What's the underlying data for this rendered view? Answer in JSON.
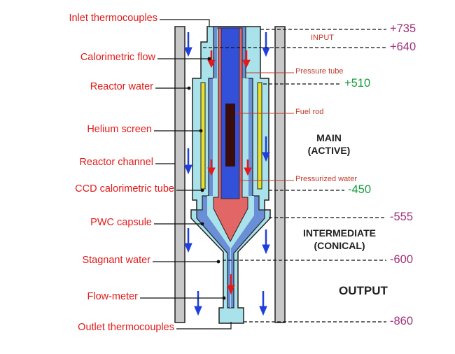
{
  "labels_left": {
    "inlet_thermocouples": "Inlet thermocouples",
    "calorimetric_flow": "Calorimetric flow",
    "reactor_water": "Reactor water",
    "helium_screen": "Helium screen",
    "reactor_channel": "Reactor channel",
    "ccd_calorimetric_tube": "CCD calorimetric tube",
    "pwc_capsule": "PWC capsule",
    "stagnant_water": "Stagnant water",
    "flow_meter": "Flow-meter",
    "outlet_thermocouples": "Outlet thermocouples"
  },
  "labels_inner": {
    "input": "INPUT",
    "pressure_tube": "Pressure tube",
    "fuel_rod": "Fuel rod",
    "pressurized_water": "Pressurized water"
  },
  "sections": {
    "main_line1": "MAIN",
    "main_line2": "(ACTIVE)",
    "intermediate_line1": "INTERMEDIATE",
    "intermediate_line2": "(CONICAL)",
    "output": "OUTPUT"
  },
  "elevations": {
    "e735": "+735",
    "e640": "+640",
    "e510": "+510",
    "e450": "-450",
    "e555": "-555",
    "e600": "-600",
    "e860": "-860"
  },
  "colors": {
    "label_red": "#e21a1a",
    "elevation_purple": "#a0307a",
    "elevation_green": "#159c3c",
    "channel_gray": "#c8c8c8",
    "water_cyan": "#a9e2ea",
    "tube_blue": "#6a8fd6",
    "fuel_red": "#e36666",
    "core_blue": "#3350d9",
    "fuel_rod_dark": "#3a0d0d",
    "helium_yellow": "#e8df2a",
    "arrow_blue": "#1f3fdd",
    "arrow_red": "#e21a1a"
  }
}
